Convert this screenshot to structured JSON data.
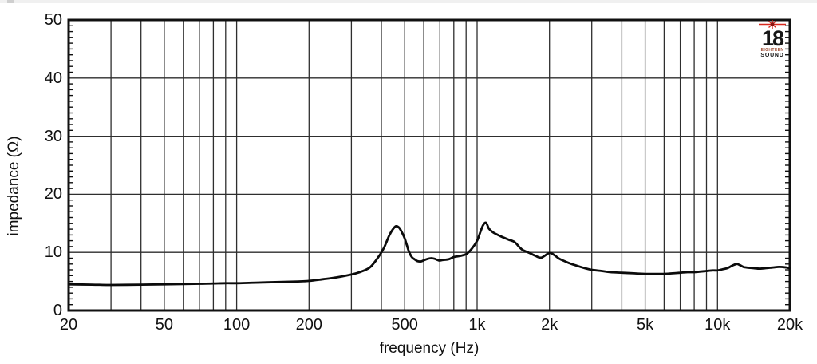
{
  "logo": {
    "name": "eighteen-sound",
    "number": "18",
    "line1": "EIGHTEEN",
    "line2": "SOUND",
    "star_color": "#d8281e",
    "star_core_color": "#8d1410"
  },
  "colors": {
    "curve": "#0b0b0b",
    "grid": "#2e2e2e",
    "border": "#101010",
    "background": "#ffffff"
  },
  "chart_data": {
    "type": "line",
    "title": "",
    "xlabel": "frequency (Hz)",
    "ylabel": "impedance (Ω)",
    "x_scale": "log",
    "y_scale": "linear",
    "xlim": [
      20,
      20000
    ],
    "ylim": [
      0,
      50
    ],
    "grid": "on",
    "legend": "none",
    "x_ticks": [
      {
        "f": 20,
        "label": "20"
      },
      {
        "f": 50,
        "label": "50"
      },
      {
        "f": 100,
        "label": "100"
      },
      {
        "f": 200,
        "label": "200"
      },
      {
        "f": 500,
        "label": "500"
      },
      {
        "f": 1000,
        "label": "1k"
      },
      {
        "f": 2000,
        "label": "2k"
      },
      {
        "f": 5000,
        "label": "5k"
      },
      {
        "f": 10000,
        "label": "10k"
      },
      {
        "f": 20000,
        "label": "20k"
      }
    ],
    "y_ticks": [
      {
        "v": 0,
        "label": "0"
      },
      {
        "v": 10,
        "label": "10"
      },
      {
        "v": 20,
        "label": "20"
      },
      {
        "v": 30,
        "label": "30"
      },
      {
        "v": 40,
        "label": "40"
      },
      {
        "v": 50,
        "label": "50"
      }
    ],
    "x_gridlines": [
      20,
      30,
      40,
      50,
      60,
      70,
      80,
      90,
      100,
      200,
      300,
      400,
      500,
      600,
      700,
      800,
      900,
      1000,
      2000,
      3000,
      4000,
      5000,
      6000,
      7000,
      8000,
      9000,
      10000,
      20000
    ],
    "y_gridlines": [
      10,
      20,
      30,
      40
    ],
    "y_minor_tick_step": 1,
    "series": [
      {
        "name": "impedance",
        "color": "#0b0b0b",
        "points": [
          [
            20,
            4.5
          ],
          [
            25,
            4.45
          ],
          [
            30,
            4.4
          ],
          [
            40,
            4.45
          ],
          [
            50,
            4.5
          ],
          [
            60,
            4.55
          ],
          [
            70,
            4.6
          ],
          [
            80,
            4.65
          ],
          [
            90,
            4.7
          ],
          [
            100,
            4.7
          ],
          [
            120,
            4.8
          ],
          [
            150,
            4.9
          ],
          [
            180,
            5.0
          ],
          [
            200,
            5.1
          ],
          [
            230,
            5.4
          ],
          [
            260,
            5.7
          ],
          [
            300,
            6.2
          ],
          [
            330,
            6.7
          ],
          [
            360,
            7.5
          ],
          [
            390,
            9.3
          ],
          [
            410,
            10.8
          ],
          [
            430,
            12.8
          ],
          [
            445,
            13.9
          ],
          [
            460,
            14.5
          ],
          [
            475,
            14.2
          ],
          [
            490,
            13.2
          ],
          [
            500,
            12.4
          ],
          [
            510,
            11.3
          ],
          [
            520,
            10.2
          ],
          [
            535,
            9.2
          ],
          [
            550,
            8.8
          ],
          [
            565,
            8.5
          ],
          [
            585,
            8.45
          ],
          [
            605,
            8.7
          ],
          [
            625,
            8.9
          ],
          [
            645,
            9.0
          ],
          [
            665,
            8.9
          ],
          [
            695,
            8.6
          ],
          [
            720,
            8.7
          ],
          [
            760,
            8.8
          ],
          [
            800,
            9.2
          ],
          [
            850,
            9.4
          ],
          [
            900,
            9.7
          ],
          [
            950,
            10.6
          ],
          [
            1000,
            12.0
          ],
          [
            1030,
            13.4
          ],
          [
            1060,
            14.7
          ],
          [
            1090,
            15.1
          ],
          [
            1120,
            14.1
          ],
          [
            1160,
            13.5
          ],
          [
            1220,
            13.0
          ],
          [
            1280,
            12.6
          ],
          [
            1350,
            12.2
          ],
          [
            1430,
            11.8
          ],
          [
            1500,
            10.9
          ],
          [
            1550,
            10.4
          ],
          [
            1650,
            9.9
          ],
          [
            1750,
            9.4
          ],
          [
            1850,
            9.1
          ],
          [
            2000,
            9.9
          ],
          [
            2100,
            9.5
          ],
          [
            2200,
            8.9
          ],
          [
            2400,
            8.2
          ],
          [
            2600,
            7.7
          ],
          [
            2800,
            7.3
          ],
          [
            3000,
            7.0
          ],
          [
            3300,
            6.8
          ],
          [
            3600,
            6.6
          ],
          [
            4000,
            6.5
          ],
          [
            4500,
            6.4
          ],
          [
            5000,
            6.3
          ],
          [
            5500,
            6.3
          ],
          [
            6000,
            6.3
          ],
          [
            6500,
            6.4
          ],
          [
            7000,
            6.5
          ],
          [
            7500,
            6.6
          ],
          [
            8000,
            6.6
          ],
          [
            8500,
            6.7
          ],
          [
            9000,
            6.8
          ],
          [
            9500,
            6.9
          ],
          [
            10000,
            6.9
          ],
          [
            10500,
            7.1
          ],
          [
            11000,
            7.3
          ],
          [
            11500,
            7.7
          ],
          [
            12000,
            8.0
          ],
          [
            12400,
            7.8
          ],
          [
            12800,
            7.5
          ],
          [
            13200,
            7.4
          ],
          [
            14000,
            7.3
          ],
          [
            15000,
            7.2
          ],
          [
            16000,
            7.3
          ],
          [
            17000,
            7.4
          ],
          [
            18000,
            7.5
          ],
          [
            19000,
            7.45
          ],
          [
            20000,
            7.3
          ]
        ]
      }
    ]
  }
}
